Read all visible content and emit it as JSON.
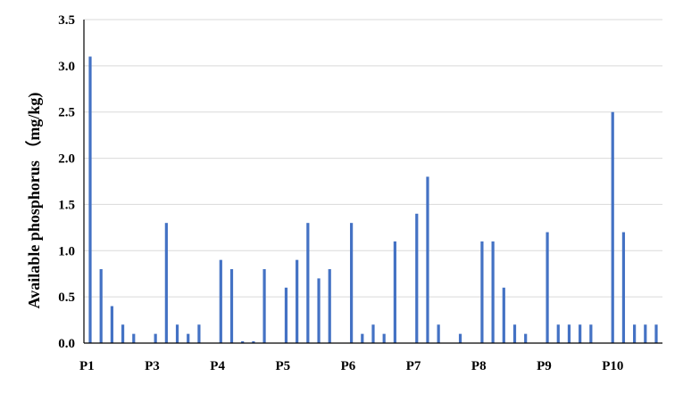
{
  "chart_data": {
    "type": "bar",
    "ylabel": "Available phosphorus （mg/kg)",
    "ylim": [
      0,
      3.5
    ],
    "yticks": [
      "0.0",
      "0.5",
      "1.0",
      "1.5",
      "2.0",
      "2.5",
      "3.0",
      "3.5"
    ],
    "x_tick_labels": [
      "P1",
      "P3",
      "P4",
      "P5",
      "P6",
      "P7",
      "P8",
      "P9",
      "P10"
    ],
    "grid": true,
    "bar_color": "#4472c4",
    "values": [
      3.1,
      0.8,
      0.4,
      0.2,
      0.1,
      0,
      0.1,
      1.3,
      0.2,
      0.1,
      0.2,
      0,
      0.9,
      0.8,
      0.02,
      0.02,
      0.8,
      0,
      0.6,
      0.9,
      1.3,
      0.7,
      0.8,
      0,
      1.3,
      0.1,
      0.2,
      0.1,
      1.1,
      0,
      1.4,
      1.8,
      0.2,
      0,
      0.1,
      0,
      1.1,
      1.1,
      0.6,
      0.2,
      0.1,
      0,
      1.2,
      0.2,
      0.2,
      0.2,
      0.2,
      0,
      2.5,
      1.2,
      0.2,
      0.2,
      0.2
    ]
  }
}
